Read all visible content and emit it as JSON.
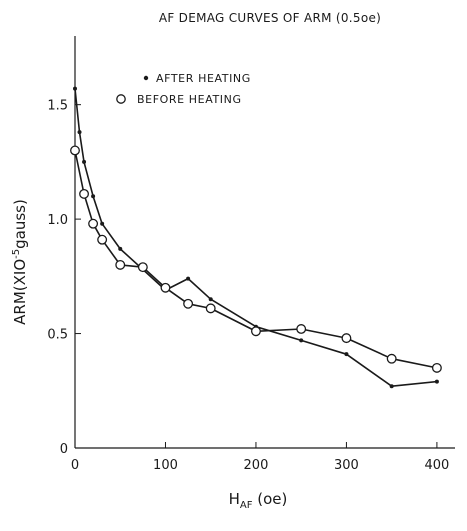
{
  "chart_data": {
    "type": "line",
    "title": "AF  DEMAG CURVES  OF ARM (0.5oe)",
    "xlabel": {
      "main": "H",
      "sub": "AF",
      "unit": " (oe)"
    },
    "ylabel": {
      "pre": "ARM(XIO",
      "sup": "-5",
      "post": "gauss)"
    },
    "xlim": [
      0,
      420
    ],
    "ylim": [
      0,
      1.8
    ],
    "xticks": [
      0,
      100,
      200,
      300,
      400
    ],
    "yticks": [
      0,
      0.5,
      1.0,
      1.5
    ],
    "xtick_labels": [
      "0",
      "100",
      "200",
      "300",
      "400"
    ],
    "ytick_labels": [
      "0",
      "0.5",
      "1.0",
      "1.5"
    ],
    "grid": false,
    "legend_position": "top-left",
    "series": [
      {
        "name": "AFTER HEATING",
        "marker": "dot",
        "color": "#1a1a1a",
        "x": [
          0,
          5,
          10,
          20,
          30,
          50,
          75,
          100,
          125,
          150,
          200,
          250,
          300,
          350,
          400
        ],
        "y": [
          1.57,
          1.38,
          1.25,
          1.1,
          0.98,
          0.87,
          0.78,
          0.69,
          0.74,
          0.65,
          0.53,
          0.47,
          0.41,
          0.27,
          0.29
        ]
      },
      {
        "name": "BEFORE HEATING",
        "marker": "circle",
        "color": "#1a1a1a",
        "x": [
          0,
          10,
          20,
          30,
          50,
          75,
          100,
          125,
          150,
          200,
          250,
          300,
          350,
          400
        ],
        "y": [
          1.3,
          1.11,
          0.98,
          0.91,
          0.8,
          0.79,
          0.7,
          0.63,
          0.61,
          0.51,
          0.52,
          0.48,
          0.39,
          0.35
        ]
      }
    ]
  }
}
